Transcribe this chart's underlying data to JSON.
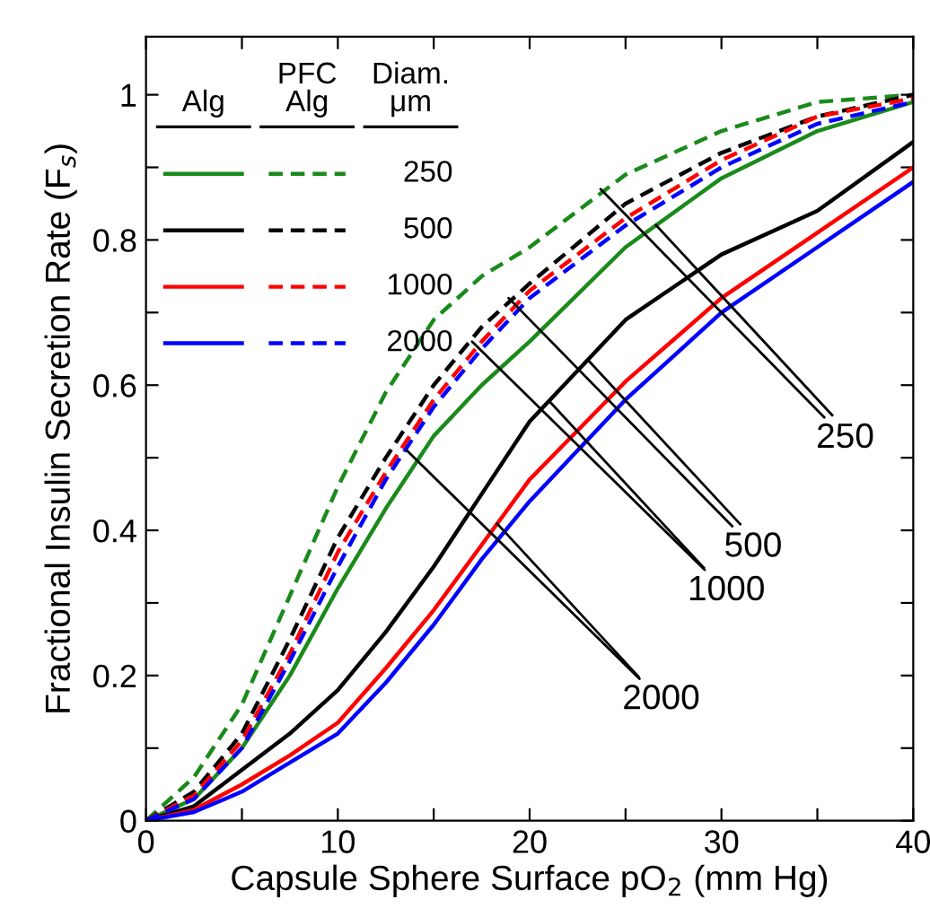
{
  "chart_data": {
    "type": "line",
    "xlabel": "Capsule Sphere Surface pO$_{2}$ (mm Hg)",
    "ylabel": "Fractional Insulin Secretion Rate (F$_{s}$)",
    "x": [
      0,
      2.5,
      5,
      7.5,
      10,
      12.5,
      15,
      17.5,
      20,
      25,
      30,
      35,
      40
    ],
    "xlim": [
      0,
      40
    ],
    "ylim": [
      0,
      1.08
    ],
    "xticks": [
      0,
      {
        "value": 5,
        "label": null
      },
      10,
      {
        "value": 15,
        "label": null
      },
      20,
      {
        "value": 25,
        "label": null
      },
      30,
      {
        "value": 35,
        "label": null
      },
      40
    ],
    "yticks": [
      0,
      {
        "value": 0.1,
        "label": null
      },
      0.2,
      {
        "value": 0.3,
        "label": null
      },
      0.4,
      {
        "value": 0.5,
        "label": null
      },
      0.6,
      {
        "value": 0.7,
        "label": null
      },
      0.8,
      {
        "value": 0.9,
        "label": null
      },
      1
    ],
    "grid": false,
    "legend": "top left",
    "marker": "none",
    "legend_title": "Diam. μm",
    "series": [
      {
        "color": "#1a8a1a",
        "line_style": "solid",
        "values": [
          0,
          0.03,
          0.1,
          0.2,
          0.32,
          0.43,
          0.53,
          0.6,
          0.66,
          0.79,
          0.885,
          0.95,
          0.99
        ]
      },
      {
        "name": "250",
        "color": "#1a8a1a",
        "line_style": "dashed",
        "values": [
          0,
          0.06,
          0.16,
          0.31,
          0.46,
          0.59,
          0.69,
          0.75,
          0.79,
          0.89,
          0.95,
          0.99,
          1.0
        ]
      },
      {
        "color": "#000000",
        "line_style": "solid",
        "values": [
          0,
          0.02,
          0.07,
          0.12,
          0.18,
          0.26,
          0.35,
          0.45,
          0.55,
          0.69,
          0.78,
          0.84,
          0.935
        ]
      },
      {
        "name": "500",
        "color": "#000000",
        "line_style": "dashed",
        "values": [
          0,
          0.04,
          0.12,
          0.25,
          0.39,
          0.5,
          0.6,
          0.68,
          0.74,
          0.85,
          0.92,
          0.97,
          1.0
        ]
      },
      {
        "color": "#ff0000",
        "line_style": "solid",
        "values": [
          0,
          0.015,
          0.05,
          0.09,
          0.135,
          0.21,
          0.29,
          0.38,
          0.47,
          0.605,
          0.72,
          0.81,
          0.9
        ]
      },
      {
        "name": "1000",
        "color": "#ff0000",
        "line_style": "dashed",
        "values": [
          0,
          0.035,
          0.11,
          0.23,
          0.37,
          0.48,
          0.58,
          0.66,
          0.73,
          0.83,
          0.91,
          0.97,
          0.995
        ]
      },
      {
        "color": "#0000ff",
        "line_style": "solid",
        "values": [
          0,
          0.012,
          0.04,
          0.08,
          0.12,
          0.19,
          0.27,
          0.36,
          0.44,
          0.58,
          0.7,
          0.79,
          0.88
        ]
      },
      {
        "name": "2000",
        "color": "#0000ff",
        "line_style": "dashed",
        "values": [
          0,
          0.03,
          0.1,
          0.22,
          0.35,
          0.47,
          0.57,
          0.65,
          0.72,
          0.82,
          0.9,
          0.96,
          0.99
        ]
      }
    ],
    "annotations": [
      "Alg",
      "PFC Alg",
      {
        "text": "250",
        "x": 23.7,
        "y": 0.87
      },
      {
        "text": "500",
        "x": 18.9,
        "y": 0.72
      },
      {
        "text": "1000",
        "x": 17,
        "y": 0.66
      },
      {
        "text": "2000",
        "x": 13.6,
        "y": 0.51
      }
    ]
  }
}
